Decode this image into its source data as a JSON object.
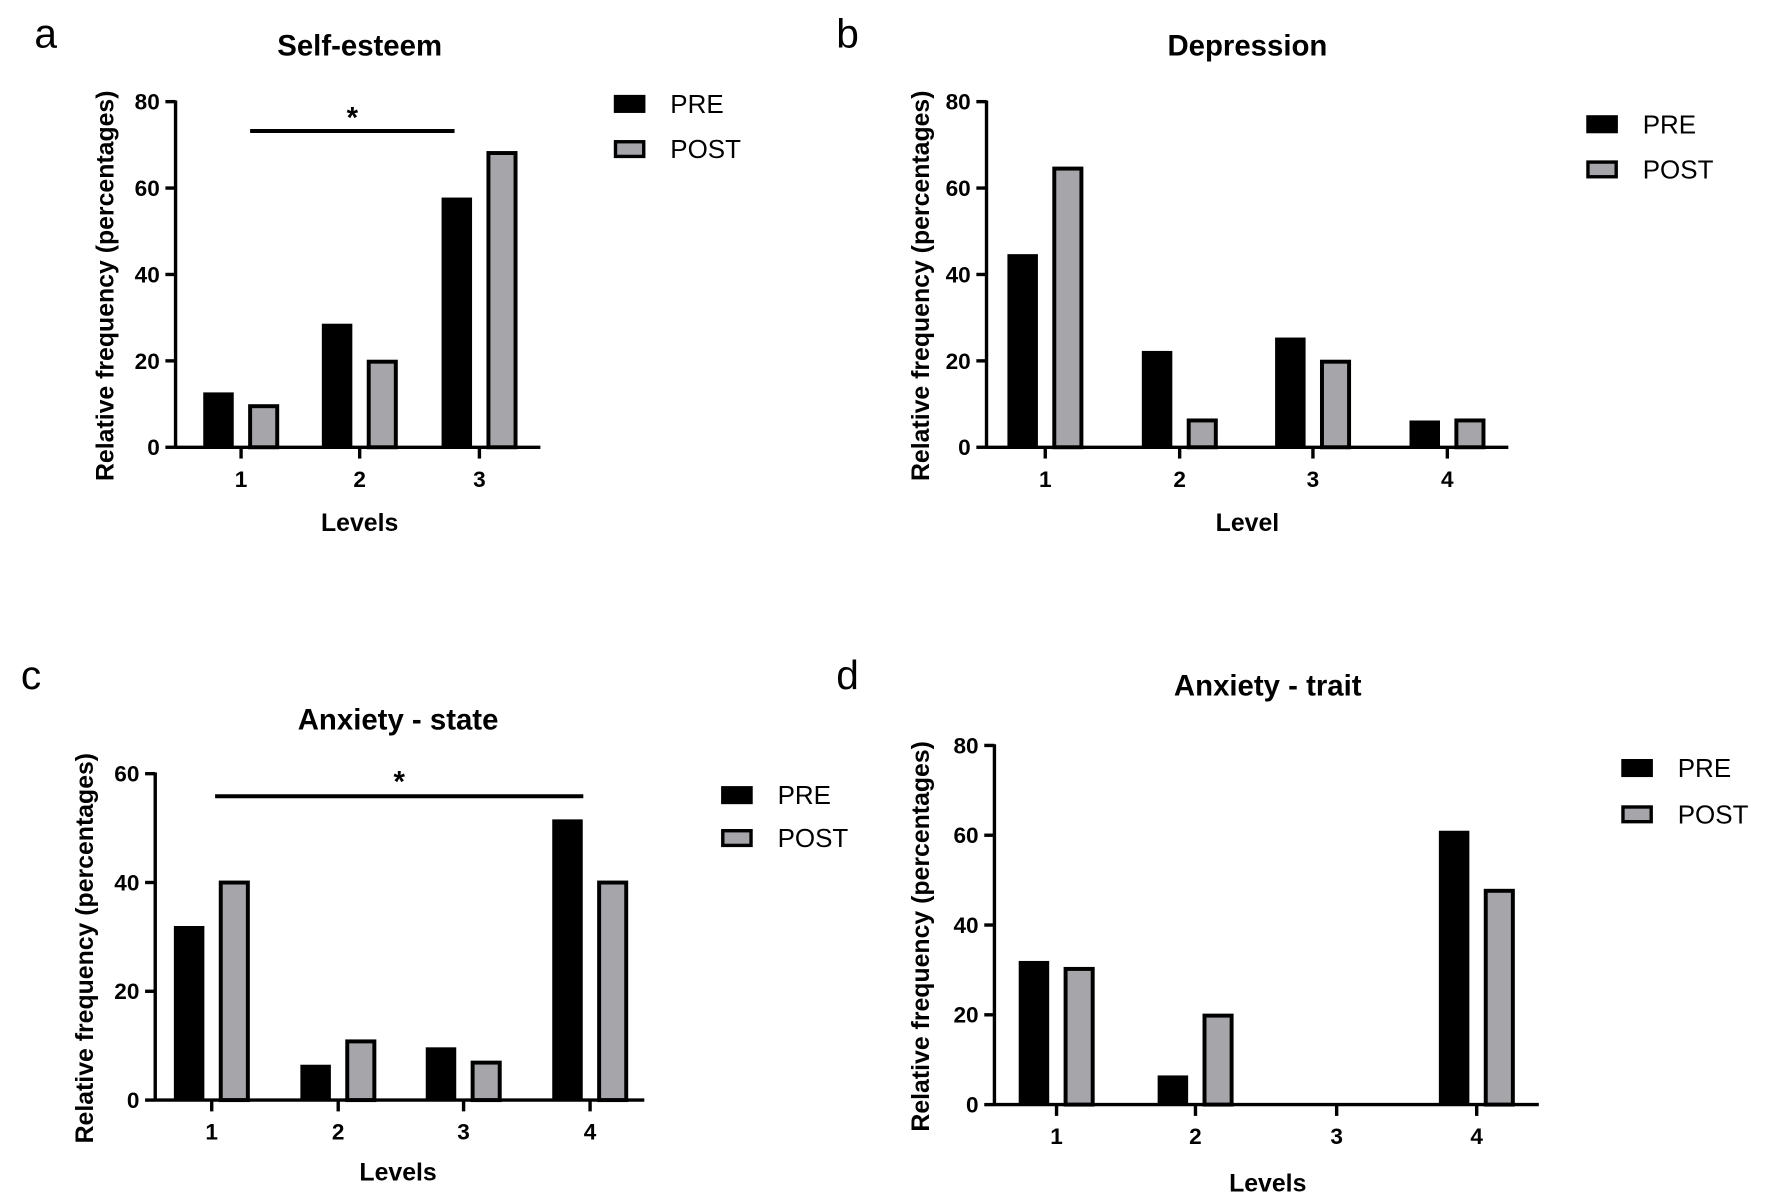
{
  "colors": {
    "pre": "#000000",
    "post": "#a6a6aa",
    "axis": "#000000"
  },
  "chart_data": [
    {
      "panel": "a",
      "type": "bar",
      "title": "Self-esteem",
      "xlabel": "Levels",
      "ylabel": "Relative frequency (percentages)",
      "categories": [
        "1",
        "2",
        "3"
      ],
      "ylim": [
        0,
        80
      ],
      "yticks": [
        "0",
        "20",
        "40",
        "60",
        "80"
      ],
      "legend": [
        "PRE",
        "POST"
      ],
      "legend_position": "right",
      "series": [
        {
          "name": "PRE",
          "values": [
            12.7,
            28.6,
            57.8
          ]
        },
        {
          "name": "POST",
          "values": [
            9.9,
            20.2,
            68.5
          ]
        }
      ],
      "significance": {
        "label": "*",
        "from": "1",
        "to": "3"
      }
    },
    {
      "panel": "b",
      "type": "bar",
      "title": "Depression",
      "xlabel": "Level",
      "ylabel": "Relative frequency (percentages)",
      "categories": [
        "1",
        "2",
        "3",
        "4"
      ],
      "ylim": [
        0,
        80
      ],
      "yticks": [
        "0",
        "20",
        "40",
        "60",
        "80"
      ],
      "legend": [
        "PRE",
        "POST"
      ],
      "legend_position": "right",
      "series": [
        {
          "name": "PRE",
          "values": [
            44.7,
            22.3,
            25.4,
            6.2
          ]
        },
        {
          "name": "POST",
          "values": [
            64.9,
            6.6,
            20.2,
            6.6
          ]
        }
      ]
    },
    {
      "panel": "c",
      "type": "bar",
      "title": "Anxiety - state",
      "xlabel": "Levels",
      "ylabel": "Relative frequency (percentages)",
      "categories": [
        "1",
        "2",
        "3",
        "4"
      ],
      "ylim": [
        0,
        60
      ],
      "yticks": [
        "0",
        "20",
        "40",
        "60"
      ],
      "legend": [
        "PRE",
        "POST"
      ],
      "legend_position": "right",
      "series": [
        {
          "name": "PRE",
          "values": [
            32.0,
            6.5,
            9.7,
            51.6
          ]
        },
        {
          "name": "POST",
          "values": [
            40.3,
            11.1,
            7.2,
            40.3
          ]
        }
      ],
      "significance": {
        "label": "*",
        "from": "1",
        "to": "4"
      }
    },
    {
      "panel": "d",
      "type": "bar",
      "title": "Anxiety - trait",
      "xlabel": "Levels",
      "ylabel": "Relative frequency (percentages)",
      "categories": [
        "1",
        "2",
        "3",
        "4"
      ],
      "ylim": [
        0,
        80
      ],
      "yticks": [
        "0",
        "20",
        "40",
        "60",
        "80"
      ],
      "legend": [
        "PRE",
        "POST"
      ],
      "legend_position": "right",
      "series": [
        {
          "name": "PRE",
          "values": [
            32.0,
            6.5,
            0,
            61.0
          ]
        },
        {
          "name": "POST",
          "values": [
            30.6,
            20.2,
            0,
            48.0
          ]
        }
      ]
    }
  ]
}
